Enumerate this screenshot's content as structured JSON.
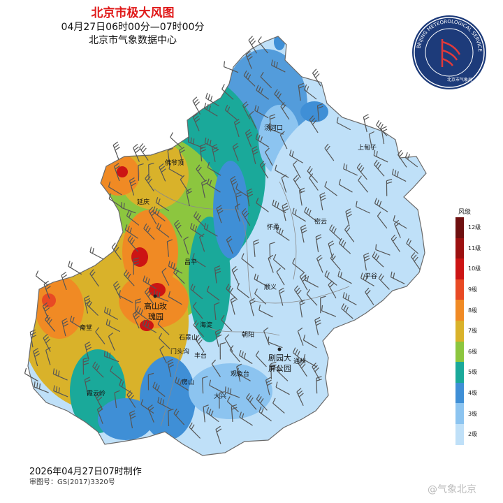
{
  "header": {
    "title": "北京市极大风图",
    "time_range": "04月27日06时00分—07时00分",
    "issuer": "北京市气象数据中心"
  },
  "footer": {
    "made": "2026年04月27日07时制作",
    "review_no": "审图号：GS(2017)3320号"
  },
  "logo": {
    "ring_text": "BEIJING METEOROLOGICAL SERVICE",
    "cn_text": "北京市气象局",
    "icon": "weather-service-logo"
  },
  "watermark": "@气象北京",
  "legend": {
    "title": "风级",
    "levels": [
      {
        "label": "12级",
        "color": "#6e0f0f"
      },
      {
        "label": "11级",
        "color": "#9c1010"
      },
      {
        "label": "10级",
        "color": "#cc1414"
      },
      {
        "label": "9级",
        "color": "#e84a24"
      },
      {
        "label": "8级",
        "color": "#f08a24"
      },
      {
        "label": "7级",
        "color": "#d9b22a"
      },
      {
        "label": "6级",
        "color": "#8cc63f"
      },
      {
        "label": "5级",
        "color": "#1aa99a"
      },
      {
        "label": "4级",
        "color": "#3f8fd6"
      },
      {
        "label": "3级",
        "color": "#8cc4f0"
      },
      {
        "label": "2级",
        "color": "#bfe0f8"
      }
    ]
  },
  "places": {
    "tanghekou": "汤河口",
    "shangdianzi": "上甸子",
    "fodeding": "佛爷顶",
    "yanqing": "延庆",
    "huairou": "怀柔",
    "miyun": "密云",
    "changping": "昌平",
    "pinggu": "平谷",
    "shunyi": "顺义",
    "gaoshan": "高山玫",
    "guiyuan": "瑰园",
    "zhaitang": "斋堂",
    "haidian": "海淀",
    "shijingshan": "石景山",
    "chaoyang": "朝阳",
    "mentougou": "门头沟",
    "fengtai": "丰台",
    "juyuan": "剧园大",
    "pinggongyuan": "屏公园",
    "tongzhou": "通州",
    "guanxiangtai": "观象台",
    "fangshan": "房山",
    "daxing": "大兴",
    "xiayunling": "霞云岭"
  },
  "map_colors": {
    "outline": "#6a6a6a",
    "barb": "#555555"
  }
}
